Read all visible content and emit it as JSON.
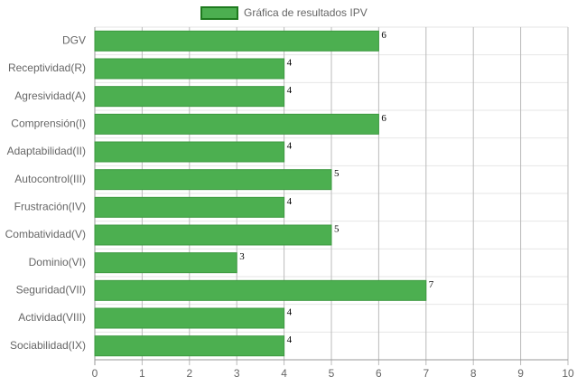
{
  "chart_data": {
    "type": "bar",
    "orientation": "horizontal",
    "categories": [
      "DGV",
      "Receptividad(R)",
      "Agresividad(A)",
      "Comprensión(I)",
      "Adaptabilidad(II)",
      "Autocontrol(III)",
      "Frustración(IV)",
      "Combatividad(V)",
      "Dominio(VI)",
      "Seguridad(VII)",
      "Actividad(VIII)",
      "Sociabilidad(IX)"
    ],
    "series": [
      {
        "name": "Gráfica de resultados IPV",
        "color": "#4caf50",
        "values": [
          6,
          4,
          4,
          6,
          4,
          5,
          4,
          5,
          3,
          7,
          4,
          4
        ]
      }
    ],
    "xlim": [
      0,
      10
    ],
    "xticks": [
      0,
      1,
      2,
      3,
      4,
      5,
      6,
      7,
      8,
      9,
      10
    ],
    "grid": true
  }
}
